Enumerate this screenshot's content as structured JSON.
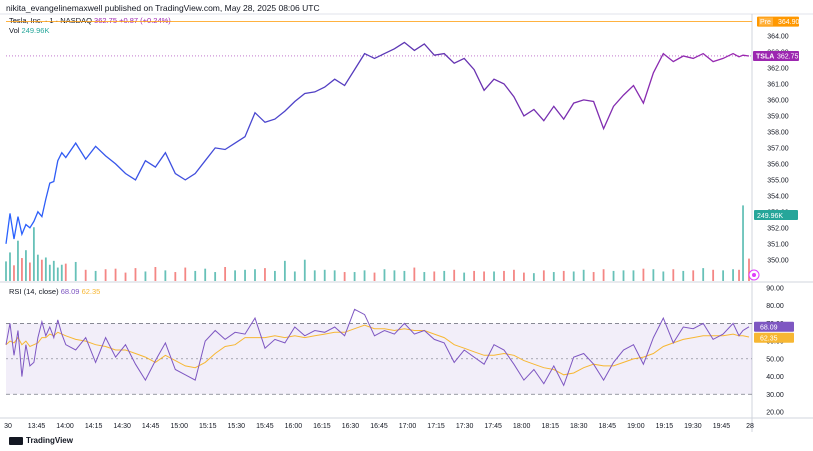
{
  "header": {
    "published_line": "nikita_evangelinemaxwell published on TradingView.com, May 28, 2025 08:06 UTC"
  },
  "legend": {
    "symbol": "Tesla, Inc. · 1 · NASDAQ",
    "price": "362.75",
    "change": "+0.87 (+0.24%)",
    "vol_label": "Vol",
    "vol_value": "249.96K",
    "rsi_label": "RSI (14, close)",
    "rsi_value": "68.09",
    "rsi_ma": "62.35"
  },
  "badges": {
    "pre_label": "Pre",
    "pre_price": "364.90",
    "symbol_tag": "TSLA",
    "last_price": "362.75",
    "volume": "249.96K",
    "rsi": "68.09",
    "rsi_ma": "62.35"
  },
  "footer": {
    "brand": "TradingView"
  },
  "colors": {
    "price_blue": "#2962ff",
    "price_purple": "#9c27b0",
    "vol_up": "#26a69a",
    "vol_down": "#ef5350",
    "rsi": "#7e57c2",
    "rsi_ma": "#f7b733",
    "pre_line": "#ff9800"
  },
  "chart_data": [
    {
      "type": "line",
      "title": "Tesla, Inc. · 1 · NASDAQ",
      "price_axis_ticks": [
        350,
        351,
        352,
        353,
        354,
        355,
        356,
        357,
        358,
        359,
        360,
        361,
        362,
        363,
        364
      ],
      "ylim": [
        349.3,
        365.0
      ],
      "x_tick_labels": [
        "30",
        "13:45",
        "14:00",
        "14:15",
        "14:30",
        "14:45",
        "15:00",
        "15:15",
        "15:30",
        "15:45",
        "16:00",
        "16:15",
        "16:30",
        "16:45",
        "17:00",
        "17:15",
        "17:30",
        "17:45",
        "18:00",
        "18:15",
        "18:30",
        "18:45",
        "19:00",
        "19:15",
        "19:30",
        "19:45",
        "28"
      ],
      "time_minutes": [
        0,
        2,
        4,
        6,
        8,
        10,
        12,
        14,
        16,
        18,
        20,
        22,
        24,
        26,
        28,
        30,
        35,
        40,
        45,
        50,
        55,
        60,
        65,
        70,
        75,
        80,
        85,
        90,
        95,
        100,
        105,
        110,
        115,
        120,
        125,
        130,
        135,
        140,
        145,
        150,
        155,
        160,
        165,
        170,
        175,
        180,
        185,
        190,
        195,
        200,
        205,
        210,
        215,
        220,
        225,
        230,
        235,
        240,
        245,
        250,
        255,
        260,
        265,
        270,
        275,
        280,
        285,
        290,
        295,
        300,
        305,
        310,
        315,
        320,
        325,
        330,
        335,
        340,
        345,
        350,
        355,
        360,
        365,
        368,
        370,
        373
      ],
      "price": [
        351.0,
        352.9,
        351.3,
        352.7,
        351.6,
        352.2,
        352.0,
        352.4,
        353.0,
        352.7,
        353.8,
        354.8,
        354.9,
        356.2,
        356.7,
        356.4,
        357.3,
        356.3,
        357.1,
        356.5,
        356.0,
        355.4,
        355.0,
        356.2,
        355.8,
        356.7,
        355.4,
        355.0,
        355.4,
        356.2,
        357.0,
        356.9,
        357.3,
        357.7,
        359.2,
        358.6,
        358.8,
        359.3,
        359.9,
        360.4,
        360.5,
        360.8,
        361.3,
        360.9,
        361.9,
        362.9,
        362.6,
        362.9,
        363.2,
        363.6,
        363.1,
        363.5,
        362.8,
        362.9,
        362.3,
        362.6,
        361.9,
        360.6,
        361.3,
        361.0,
        360.2,
        359.0,
        359.4,
        358.7,
        359.6,
        358.8,
        359.8,
        360.0,
        359.9,
        358.2,
        359.6,
        360.3,
        360.9,
        359.8,
        361.7,
        362.9,
        362.4,
        362.75,
        362.6,
        362.9,
        362.4,
        362.6,
        362.9,
        362.7,
        362.8,
        362.75
      ],
      "volume": [
        3.5,
        5.1,
        2.8,
        7.2,
        4.1,
        5.5,
        3.3,
        9.6,
        4.7,
        3.8,
        4.2,
        2.9,
        3.6,
        2.4,
        2.9,
        3.1,
        3.4,
        2.0,
        1.8,
        2.1,
        2.2,
        1.5,
        2.3,
        1.7,
        2.5,
        1.9,
        1.6,
        2.4,
        1.8,
        2.2,
        1.6,
        2.5,
        1.9,
        2.0,
        2.1,
        2.3,
        1.8,
        3.6,
        1.7,
        3.8,
        1.9,
        2.0,
        1.9,
        1.6,
        1.6,
        1.9,
        1.5,
        2.1,
        1.9,
        1.8,
        2.4,
        1.6,
        1.7,
        1.8,
        2.0,
        1.5,
        1.8,
        1.7,
        1.7,
        1.8,
        2.0,
        1.5,
        1.4,
        1.9,
        1.6,
        1.8,
        1.7,
        2.0,
        1.6,
        2.1,
        1.8,
        1.9,
        1.9,
        2.2,
        2.1,
        1.7,
        2.1,
        1.8,
        1.9,
        2.3,
        2.0,
        1.9,
        2.1,
        2.0,
        13.5,
        4.0
      ],
      "volume_units": "approx. relative bar heights",
      "rsi_axis_ticks": [
        20,
        30,
        40,
        50,
        60,
        70,
        80,
        90
      ],
      "rsi_ylim": [
        20,
        90
      ],
      "rsi": [
        58,
        70,
        52,
        66,
        40,
        58,
        46,
        48,
        62,
        71,
        63,
        68,
        62,
        72,
        64,
        58,
        55,
        62,
        48,
        62,
        51,
        58,
        47,
        38,
        49,
        59,
        44,
        41,
        38,
        60,
        66,
        61,
        65,
        64,
        73,
        56,
        61,
        59,
        68,
        63,
        66,
        65,
        68,
        63,
        78,
        75,
        63,
        66,
        64,
        70,
        64,
        66,
        61,
        59,
        48,
        55,
        51,
        47,
        58,
        55,
        47,
        38,
        44,
        36,
        46,
        35,
        51,
        53,
        47,
        38,
        48,
        55,
        58,
        47,
        62,
        73,
        59,
        68,
        67,
        70,
        61,
        64,
        70,
        63,
        66,
        68.09
      ],
      "rsi_ma": [
        58,
        60,
        59,
        62,
        58,
        60,
        57,
        58,
        59,
        62,
        62,
        64,
        63,
        65,
        64,
        63,
        61,
        60,
        58,
        57,
        55,
        55,
        53,
        51,
        48,
        52,
        49,
        46,
        45,
        48,
        53,
        57,
        58,
        62,
        62,
        62,
        63,
        62,
        63,
        62,
        63,
        64,
        65,
        65,
        67,
        69,
        67,
        67,
        66,
        67,
        66,
        66,
        64,
        62,
        58,
        56,
        54,
        52,
        52,
        53,
        52,
        49,
        47,
        45,
        44,
        41,
        42,
        45,
        47,
        46,
        46,
        48,
        50,
        51,
        53,
        57,
        59,
        61,
        62,
        63,
        63,
        63,
        64,
        63,
        63,
        62.35
      ],
      "rsi_band": [
        30,
        70
      ]
    }
  ]
}
